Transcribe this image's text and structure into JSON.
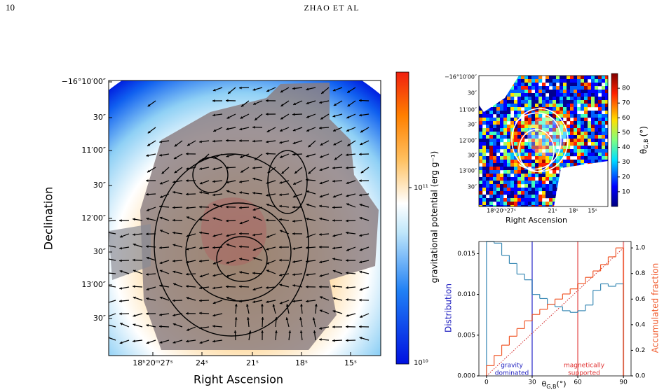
{
  "header": {
    "page_number": "10",
    "running_title": "ZHAO ET AL"
  },
  "figure": {
    "main_panel": {
      "y_label": "Declination",
      "x_label": "Right Ascension",
      "yticks": [
        "−16°10′00″",
        "30″",
        "11′00″",
        "30″",
        "12′00″",
        "30″",
        "13′00″",
        "30″"
      ],
      "xticks": [
        "18ʰ20ᵐ27ˢ",
        "24ˢ",
        "21ˢ",
        "18ˢ",
        "15ˢ"
      ],
      "colorbar": {
        "label": "gravitational potential (erg g⁻¹)",
        "ticks": [
          "10¹¹",
          "10¹⁰"
        ]
      }
    },
    "angle_map": {
      "x_label": "Right Ascension",
      "yticks": [
        "−16°10′00″",
        "30″",
        "11′00″",
        "30″",
        "12′00″",
        "30″",
        "13′00″",
        "30″"
      ],
      "xticks": [
        "18ʰ20ᵐ27ˢ",
        "21ˢ",
        "18ˢ",
        "15ˢ"
      ],
      "colorbar": {
        "label": {
          "symbol": "θ",
          "subscript": "G,B",
          "unit": "(°)"
        },
        "ticks": [
          10,
          20,
          30,
          40,
          50,
          60,
          70,
          80
        ],
        "ylim": [
          0,
          90
        ]
      }
    },
    "histogram": {
      "type": "histogram",
      "bins": [
        0,
        5,
        10,
        15,
        20,
        25,
        30,
        35,
        40,
        45,
        50,
        55,
        60,
        65,
        70,
        75,
        80,
        85,
        90
      ],
      "values": [
        0.0165,
        0.0163,
        0.0148,
        0.0138,
        0.0125,
        0.0118,
        0.01,
        0.0095,
        0.0088,
        0.0085,
        0.008,
        0.0078,
        0.008,
        0.0087,
        0.0105,
        0.0113,
        0.011,
        0.0113
      ],
      "color": "#3a8ab5",
      "cumulative": {
        "values": [
          0.08,
          0.16,
          0.24,
          0.31,
          0.37,
          0.43,
          0.48,
          0.52,
          0.56,
          0.6,
          0.64,
          0.68,
          0.72,
          0.77,
          0.82,
          0.87,
          0.93,
          1.0
        ],
        "color": "#f0582a",
        "axis": "y2"
      },
      "vlines": [
        {
          "x": 30,
          "color": "#4040d0"
        },
        {
          "x": 60,
          "color": "#e86060"
        },
        {
          "x": 90,
          "color": "#e86060"
        }
      ],
      "xlim": [
        -5,
        95
      ],
      "xticks": [
        0,
        30,
        60,
        90
      ],
      "ylim": [
        0,
        0.0165
      ],
      "yticks": [
        {
          "value": 0,
          "label": "0.000"
        },
        0.005,
        {
          "value": 0.01,
          "label": "0.010"
        },
        0.015
      ],
      "y2lim": [
        0,
        1.05
      ],
      "y2ticks": [
        {
          "value": 0,
          "label": "0.0"
        },
        0.2,
        0.4,
        0.6,
        0.8,
        {
          "value": 1,
          "label": "1.0"
        }
      ],
      "x_label": {
        "symbol": "θ",
        "subscript": "G,B",
        "unit": "(°)"
      },
      "y_label": "Distribution",
      "y2_label": "Accumulated fraction",
      "annotations": [
        [
          "gravity",
          "dominated"
        ],
        [
          "magnetically",
          "supported"
        ]
      ]
    }
  }
}
